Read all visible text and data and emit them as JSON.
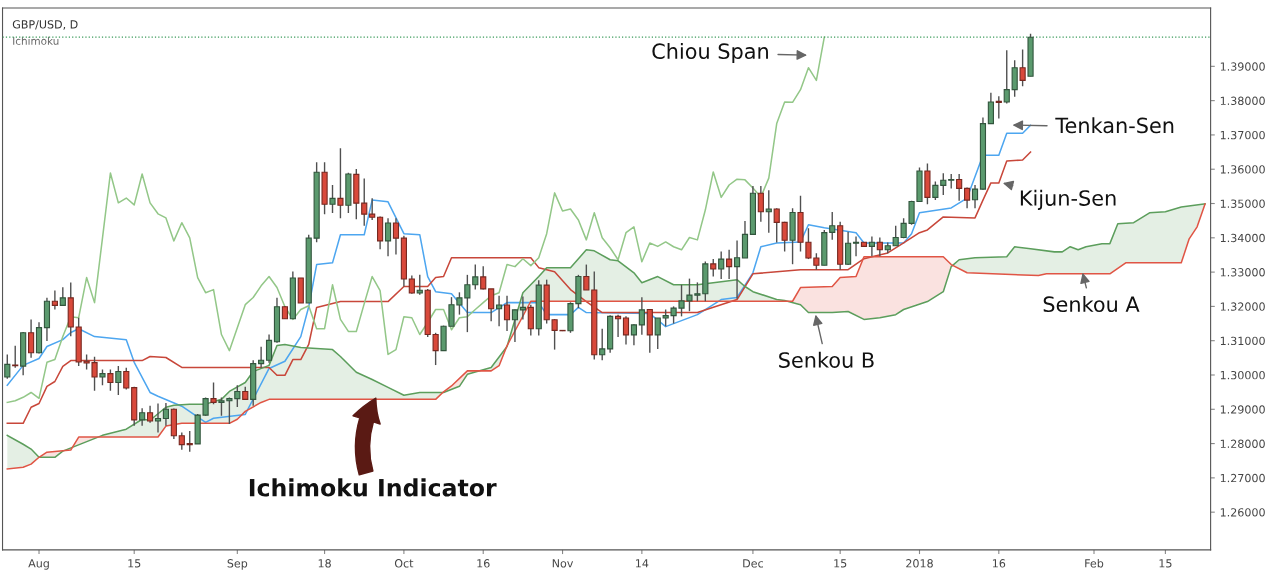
{
  "chart_data": {
    "type": "candlestick",
    "title": "GBP/USD, D",
    "subtitle": "Ichimoku",
    "categories": [
      null,
      null,
      null,
      null,
      "Aug",
      null,
      null,
      null,
      null,
      null,
      null,
      null,
      null,
      null,
      null,
      null,
      "15",
      null,
      null,
      null,
      null,
      null,
      null,
      null,
      null,
      null,
      null,
      null,
      null,
      "Sep",
      null,
      null,
      null,
      null,
      null,
      null,
      null,
      null,
      null,
      null,
      "18",
      null,
      null,
      null,
      null,
      null,
      null,
      null,
      null,
      null,
      "Oct",
      null,
      null,
      null,
      null,
      null,
      null,
      null,
      null,
      null,
      "16",
      null,
      null,
      null,
      null,
      null,
      null,
      null,
      null,
      null,
      "Nov",
      null,
      null,
      null,
      null,
      null,
      null,
      null,
      null,
      null,
      "14",
      null,
      null,
      null,
      null,
      null,
      null,
      null,
      null,
      null,
      null,
      null,
      null,
      null,
      "Dec",
      null,
      null,
      null,
      null,
      null,
      null,
      null,
      null,
      null,
      null,
      "15",
      null,
      null,
      null,
      null,
      null,
      null,
      null,
      null,
      null,
      "2018",
      null,
      null,
      null,
      null,
      null,
      null,
      null,
      null,
      null,
      "16",
      null,
      null,
      null,
      null,
      null,
      null,
      null,
      null,
      null,
      null,
      null,
      "Feb",
      null,
      null,
      null,
      null,
      null,
      null,
      null,
      null,
      "15",
      null,
      null,
      null,
      null,
      null
    ],
    "ohlc": [
      [
        1.2994,
        1.306,
        1.2989,
        1.3031
      ],
      [
        1.3029,
        1.3085,
        1.3021,
        1.3027
      ],
      [
        1.3026,
        1.3125,
        1.2999,
        1.3123
      ],
      [
        1.3123,
        1.3162,
        1.305,
        1.3065
      ],
      [
        1.3065,
        1.3154,
        1.3063,
        1.3138
      ],
      [
        1.3138,
        1.3225,
        1.3099,
        1.3215
      ],
      [
        1.3215,
        1.3246,
        1.3191,
        1.3203
      ],
      [
        1.3203,
        1.3256,
        1.3203,
        1.3225
      ],
      [
        1.3225,
        1.327,
        1.3113,
        1.314
      ],
      [
        1.314,
        1.3167,
        1.3026,
        1.3038
      ],
      [
        1.304,
        1.306,
        1.3016,
        1.3035
      ],
      [
        1.3036,
        1.3053,
        1.2954,
        1.2994
      ],
      [
        1.2994,
        1.3016,
        1.297,
        1.3004
      ],
      [
        1.3004,
        1.3016,
        1.2954,
        1.2978
      ],
      [
        1.2978,
        1.3026,
        1.2942,
        1.301
      ],
      [
        1.301,
        1.3021,
        1.2958,
        1.2962
      ],
      [
        1.2963,
        1.2966,
        1.2852,
        1.2869
      ],
      [
        1.2869,
        1.2903,
        1.2852,
        1.289
      ],
      [
        1.289,
        1.291,
        1.2861,
        1.2866
      ],
      [
        1.2866,
        1.2917,
        1.2832,
        1.2873
      ],
      [
        1.2873,
        1.2918,
        1.2852,
        1.29
      ],
      [
        1.29,
        1.2902,
        1.2813,
        1.2823
      ],
      [
        1.2823,
        1.2832,
        1.2782,
        1.2797
      ],
      [
        1.28,
        1.2837,
        1.2776,
        1.2797
      ],
      [
        1.2799,
        1.2886,
        1.2799,
        1.2883
      ],
      [
        1.2883,
        1.2934,
        1.2881,
        1.2931
      ],
      [
        1.2931,
        1.2978,
        1.2915,
        1.292
      ],
      [
        1.292,
        1.2934,
        1.2881,
        1.2925
      ],
      [
        1.2925,
        1.2934,
        1.2857,
        1.2931
      ],
      [
        1.2931,
        1.297,
        1.2907,
        1.2952
      ],
      [
        1.2952,
        1.2966,
        1.2927,
        1.2929
      ],
      [
        1.2929,
        1.3043,
        1.291,
        1.3033
      ],
      [
        1.3033,
        1.3082,
        1.3021,
        1.3043
      ],
      [
        1.3043,
        1.3118,
        1.3036,
        1.3101
      ],
      [
        1.3097,
        1.3225,
        1.3094,
        1.3199
      ],
      [
        1.3199,
        1.3201,
        1.3164,
        1.3164
      ],
      [
        1.3164,
        1.3302,
        1.3164,
        1.3283
      ],
      [
        1.3283,
        1.3283,
        1.321,
        1.321
      ],
      [
        1.321,
        1.3409,
        1.321,
        1.3399
      ],
      [
        1.3399,
        1.362,
        1.3387,
        1.3591
      ],
      [
        1.3591,
        1.362,
        1.3469,
        1.3498
      ],
      [
        1.3498,
        1.3554,
        1.3472,
        1.3515
      ],
      [
        1.3515,
        1.3661,
        1.3457,
        1.3495
      ],
      [
        1.3495,
        1.359,
        1.3472,
        1.3586
      ],
      [
        1.3585,
        1.3601,
        1.3454,
        1.3501
      ],
      [
        1.3501,
        1.3573,
        1.3435,
        1.3469
      ],
      [
        1.3469,
        1.3515,
        1.3452,
        1.346
      ],
      [
        1.346,
        1.3462,
        1.3367,
        1.3391
      ],
      [
        1.3391,
        1.3457,
        1.3346,
        1.3443
      ],
      [
        1.3443,
        1.3457,
        1.3351,
        1.3399
      ],
      [
        1.3399,
        1.3406,
        1.3258,
        1.328
      ],
      [
        1.328,
        1.329,
        1.3237,
        1.3239
      ],
      [
        1.3239,
        1.3292,
        1.3234,
        1.3247
      ],
      [
        1.3247,
        1.3251,
        1.3111,
        1.3118
      ],
      [
        1.3118,
        1.3123,
        1.3029,
        1.3071
      ],
      [
        1.3071,
        1.3144,
        1.3071,
        1.3142
      ],
      [
        1.3142,
        1.3227,
        1.3142,
        1.3205
      ],
      [
        1.3204,
        1.3241,
        1.3176,
        1.3225
      ],
      [
        1.3225,
        1.3292,
        1.3125,
        1.3263
      ],
      [
        1.3263,
        1.3322,
        1.3249,
        1.3286
      ],
      [
        1.3286,
        1.3317,
        1.3249,
        1.3251
      ],
      [
        1.3251,
        1.3251,
        1.3157,
        1.3193
      ],
      [
        1.3193,
        1.3231,
        1.3142,
        1.3204
      ],
      [
        1.3204,
        1.3231,
        1.3128,
        1.3161
      ],
      [
        1.3161,
        1.3191,
        1.3096,
        1.319
      ],
      [
        1.319,
        1.3229,
        1.3162,
        1.3197
      ],
      [
        1.3197,
        1.3205,
        1.3115,
        1.3135
      ],
      [
        1.3135,
        1.3276,
        1.3115,
        1.3262
      ],
      [
        1.3262,
        1.3278,
        1.315,
        1.3161
      ],
      [
        1.3161,
        1.3163,
        1.3074,
        1.313
      ],
      [
        1.313,
        1.3131,
        1.3128,
        1.3129
      ],
      [
        1.3129,
        1.3212,
        1.3123,
        1.3208
      ],
      [
        1.3208,
        1.3292,
        1.3195,
        1.3287
      ],
      [
        1.3287,
        1.3322,
        1.3248,
        1.3248
      ],
      [
        1.3248,
        1.3302,
        1.3045,
        1.3059
      ],
      [
        1.3059,
        1.3135,
        1.3043,
        1.3076
      ],
      [
        1.3076,
        1.3174,
        1.3065,
        1.3171
      ],
      [
        1.3171,
        1.3176,
        1.3111,
        1.3164
      ],
      [
        1.3166,
        1.3171,
        1.3089,
        1.3117
      ],
      [
        1.3117,
        1.3148,
        1.3087,
        1.3146
      ],
      [
        1.3146,
        1.3227,
        1.3117,
        1.319
      ],
      [
        1.3191,
        1.3192,
        1.3065,
        1.3117
      ],
      [
        1.3117,
        1.3166,
        1.3076,
        1.3166
      ],
      [
        1.3166,
        1.3191,
        1.3142,
        1.3173
      ],
      [
        1.3173,
        1.32,
        1.315,
        1.3195
      ],
      [
        1.3195,
        1.3263,
        1.3171,
        1.3216
      ],
      [
        1.3216,
        1.3281,
        1.3186,
        1.3233
      ],
      [
        1.3233,
        1.327,
        1.3215,
        1.3237
      ],
      [
        1.3237,
        1.3331,
        1.3215,
        1.3324
      ],
      [
        1.3324,
        1.3338,
        1.3287,
        1.3309
      ],
      [
        1.3309,
        1.336,
        1.328,
        1.3338
      ],
      [
        1.3338,
        1.3365,
        1.328,
        1.3316
      ],
      [
        1.3316,
        1.3392,
        1.3222,
        1.3342
      ],
      [
        1.3341,
        1.3449,
        1.3341,
        1.341
      ],
      [
        1.341,
        1.3551,
        1.341,
        1.353
      ],
      [
        1.353,
        1.3551,
        1.3447,
        1.3476
      ],
      [
        1.3476,
        1.3539,
        1.3415,
        1.3484
      ],
      [
        1.3484,
        1.3486,
        1.3386,
        1.3445
      ],
      [
        1.3445,
        1.3447,
        1.336,
        1.3393
      ],
      [
        1.3393,
        1.3486,
        1.3323,
        1.3474
      ],
      [
        1.3474,
        1.3523,
        1.336,
        1.3387
      ],
      [
        1.3387,
        1.3428,
        1.3338,
        1.3341
      ],
      [
        1.3341,
        1.3355,
        1.3307,
        1.332
      ],
      [
        1.332,
        1.3423,
        1.332,
        1.3415
      ],
      [
        1.3416,
        1.3475,
        1.3394,
        1.3435
      ],
      [
        1.3435,
        1.3447,
        1.3307,
        1.3323
      ],
      [
        1.3323,
        1.3418,
        1.3321,
        1.3384
      ],
      [
        1.3384,
        1.3404,
        1.3346,
        1.3387
      ],
      [
        1.3387,
        1.3387,
        1.3373,
        1.3375
      ],
      [
        1.3375,
        1.3404,
        1.3346,
        1.3387
      ],
      [
        1.3387,
        1.3401,
        1.3346,
        1.3365
      ],
      [
        1.3365,
        1.3386,
        1.3355,
        1.3377
      ],
      [
        1.3377,
        1.3435,
        1.3377,
        1.3401
      ],
      [
        1.3401,
        1.3457,
        1.3399,
        1.3442
      ],
      [
        1.3442,
        1.3508,
        1.3438,
        1.3506
      ],
      [
        1.3506,
        1.3605,
        1.3506,
        1.3595
      ],
      [
        1.3595,
        1.3617,
        1.3498,
        1.3518
      ],
      [
        1.3518,
        1.3564,
        1.351,
        1.3553
      ],
      [
        1.3553,
        1.3588,
        1.3525,
        1.3568
      ],
      [
        1.3568,
        1.3586,
        1.3544,
        1.357
      ],
      [
        1.357,
        1.3586,
        1.3508,
        1.3544
      ],
      [
        1.3544,
        1.3547,
        1.3486,
        1.351
      ],
      [
        1.3511,
        1.3554,
        1.3486,
        1.3542
      ],
      [
        1.3542,
        1.3751,
        1.354,
        1.3733
      ],
      [
        1.3733,
        1.3823,
        1.3732,
        1.3796
      ],
      [
        1.3798,
        1.3813,
        1.3748,
        1.3795
      ],
      [
        1.3796,
        1.3947,
        1.3792,
        1.3832
      ],
      [
        1.3832,
        1.3918,
        1.3811,
        1.3896
      ],
      [
        1.3896,
        1.3949,
        1.3842,
        1.3859
      ],
      [
        1.3871,
        1.3995,
        1.3871,
        1.3985
      ],
      null,
      null,
      null,
      null,
      null,
      null,
      null,
      null,
      null,
      null,
      null,
      null,
      null,
      null,
      null,
      null,
      null,
      null,
      null,
      null,
      null,
      null
    ],
    "colors": [
      "#5b9a6e",
      "#d9493b",
      "#5b9a6e",
      "#d9493b",
      "#5b9a6e",
      "#5b9a6e",
      "#d9493b",
      "#5b9a6e",
      "#d9493b",
      "#d9493b",
      "#d9493b",
      "#d9493b",
      "#5b9a6e",
      "#d9493b",
      "#5b9a6e",
      "#d9493b",
      "#d9493b",
      "#5b9a6e",
      "#d9493b",
      "#5b9a6e",
      "#5b9a6e",
      "#d9493b",
      "#d9493b",
      "#d9493b",
      "#5b9a6e",
      "#5b9a6e",
      "#d9493b",
      "#5b9a6e",
      "#5b9a6e",
      "#5b9a6e",
      "#d9493b",
      "#5b9a6e",
      "#5b9a6e",
      "#5b9a6e",
      "#5b9a6e",
      "#d9493b",
      "#5b9a6e",
      "#d9493b",
      "#5b9a6e",
      "#5b9a6e",
      "#d9493b",
      "#5b9a6e",
      "#d9493b",
      "#5b9a6e",
      "#d9493b",
      "#d9493b",
      "#d9493b",
      "#d9493b",
      "#5b9a6e",
      "#d9493b",
      "#d9493b",
      "#d9493b",
      "#5b9a6e",
      "#d9493b",
      "#d9493b",
      "#5b9a6e",
      "#5b9a6e",
      "#5b9a6e",
      "#5b9a6e",
      "#5b9a6e",
      "#d9493b",
      "#d9493b",
      "#5b9a6e",
      "#d9493b",
      "#5b9a6e",
      "#5b9a6e",
      "#d9493b",
      "#5b9a6e",
      "#d9493b",
      "#d9493b",
      "#d9493b",
      "#5b9a6e",
      "#5b9a6e",
      "#d9493b",
      "#d9493b",
      "#5b9a6e",
      "#5b9a6e",
      "#d9493b",
      "#d9493b",
      "#5b9a6e",
      "#5b9a6e",
      "#d9493b",
      "#5b9a6e",
      "#5b9a6e",
      "#5b9a6e",
      "#5b9a6e",
      "#5b9a6e",
      "#5b9a6e",
      "#5b9a6e",
      "#d9493b",
      "#5b9a6e",
      "#d9493b",
      "#5b9a6e",
      "#5b9a6e",
      "#5b9a6e",
      "#d9493b",
      "#5b9a6e",
      "#d9493b",
      "#d9493b",
      "#5b9a6e",
      "#d9493b",
      "#d9493b",
      "#d9493b",
      "#5b9a6e",
      "#5b9a6e",
      "#d9493b",
      "#5b9a6e",
      "#5b9a6e",
      "#d9493b",
      "#5b9a6e",
      "#d9493b",
      "#5b9a6e",
      "#5b9a6e",
      "#5b9a6e",
      "#5b9a6e",
      "#5b9a6e",
      "#d9493b",
      "#5b9a6e",
      "#5b9a6e",
      "#5b9a6e",
      "#d9493b",
      "#d9493b",
      "#5b9a6e",
      "#5b9a6e",
      "#5b9a6e",
      "#d9493b",
      "#5b9a6e",
      "#5b9a6e",
      "#d9493b",
      "#5b9a6e",
      null,
      null,
      null,
      null,
      null,
      null,
      null,
      null,
      null,
      null,
      null,
      null,
      null,
      null,
      null,
      null,
      null,
      null,
      null,
      null,
      null,
      null
    ],
    "series": [
      {
        "type": "line",
        "color": "#4da6f0",
        "values": [
          1.297,
          null,
          1.3028,
          null,
          1.3048,
          1.3083,
          null,
          1.3103,
          1.3124,
          1.3135,
          null,
          1.3112,
          null,
          null,
          null,
          1.3103,
          1.3037,
          null,
          1.2949,
          1.2938,
          null,
          null,
          1.2909,
          null,
          null,
          1.2862,
          1.2874,
          null,
          null,
          null,
          1.2885,
          null,
          null,
          1.3019,
          null,
          1.304,
          null,
          1.3112,
          1.3199,
          1.3322,
          null,
          1.3327,
          1.3409,
          null,
          null,
          1.3409,
          1.351,
          null,
          1.3505,
          null,
          1.3412,
          null,
          1.3409,
          1.3287,
          1.3243,
          null,
          1.3237,
          null,
          1.3182,
          null,
          null,
          1.3182,
          null,
          1.3211,
          null,
          null,
          null,
          1.3211,
          1.3176,
          null,
          null,
          1.3176,
          1.3197,
          1.3182,
          null,
          null,
          null,
          null,
          null,
          null,
          null,
          1.3179,
          null,
          1.3141,
          null,
          null,
          null,
          1.3176,
          null,
          null,
          1.322,
          null,
          1.3226,
          null,
          1.3298,
          1.3374,
          null,
          1.3385,
          null,
          null,
          1.3388,
          1.3438,
          null,
          1.3429,
          null,
          null,
          null,
          1.3415,
          1.3385,
          null,
          null,
          null,
          null,
          1.3385,
          1.3412,
          1.3473,
          null,
          null,
          null,
          1.3487,
          null,
          1.3516,
          null,
          1.3641,
          null,
          1.3641,
          1.3705,
          null,
          1.3705,
          1.3728,
          null,
          null,
          null,
          null,
          null,
          null,
          null,
          null,
          null,
          null,
          null,
          null,
          null,
          null,
          null,
          null,
          null,
          null,
          null,
          null,
          null,
          null
        ]
      },
      {
        "type": "line",
        "color": "#c8473a",
        "values": [
          1.2859,
          null,
          1.2859,
          1.2906,
          1.2917,
          1.2967,
          1.2981,
          1.3025,
          1.3042,
          null,
          null,
          null,
          null,
          null,
          null,
          null,
          null,
          1.3042,
          1.3054,
          null,
          1.3051,
          null,
          1.3022,
          null,
          null,
          null,
          null,
          null,
          null,
          null,
          null,
          null,
          null,
          1.3022,
          1.2999,
          1.2999,
          1.3045,
          1.3045,
          1.3089,
          1.3197,
          null,
          null,
          1.3214,
          null,
          null,
          null,
          null,
          null,
          1.3214,
          null,
          1.3258,
          null,
          null,
          1.3258,
          1.3284,
          1.3287,
          1.3342,
          null,
          null,
          null,
          null,
          null,
          null,
          null,
          null,
          null,
          1.3342,
          1.3313,
          null,
          1.3301,
          null,
          1.3249,
          null,
          1.3214,
          null,
          1.3182,
          null,
          null,
          null,
          null,
          null,
          null,
          null,
          null,
          null,
          null,
          null,
          1.3182,
          null,
          null,
          null,
          null,
          1.322,
          null,
          1.3295,
          null,
          null,
          null,
          null,
          null,
          1.3307,
          null,
          null,
          null,
          null,
          null,
          1.3307,
          null,
          1.3339,
          null,
          null,
          1.3356,
          null,
          1.3385,
          null,
          1.3415,
          1.3423,
          null,
          1.3461,
          null,
          null,
          null,
          1.3458,
          1.351,
          1.356,
          1.356,
          1.3624,
          null,
          1.3627,
          1.365,
          null,
          null,
          null,
          null,
          null,
          null,
          null,
          null,
          null,
          null,
          null,
          null,
          null,
          null,
          null,
          null,
          null,
          null,
          null,
          null,
          null,
          null
        ]
      },
      {
        "type": "line",
        "color": "#93c788",
        "values": [
          1.292,
          1.2925,
          1.2935,
          1.2949,
          1.2932,
          1.3037,
          1.3045,
          1.3112,
          1.317,
          1.3167,
          1.3284,
          1.3211,
          1.3399,
          1.3589,
          1.3502,
          1.3516,
          1.3496,
          1.3586,
          1.3502,
          1.347,
          1.3458,
          1.3391,
          1.3444,
          1.34,
          1.3284,
          1.324,
          1.3249,
          1.3118,
          1.3071,
          1.3138,
          1.3205,
          1.3226,
          1.326,
          1.3287,
          1.3255,
          1.3199,
          1.3162,
          1.3191,
          1.3202,
          1.3135,
          1.3135,
          1.3263,
          1.3162,
          1.3127,
          1.3127,
          1.3208,
          1.3287,
          1.3246,
          1.306,
          1.3074,
          1.317,
          1.3167,
          1.3118,
          1.3153,
          1.3191,
          1.3191,
          1.3132,
          1.3167,
          1.317,
          1.3191,
          1.3211,
          1.3231,
          1.324,
          1.3322,
          1.3316,
          1.3339,
          1.3319,
          1.3342,
          1.3412,
          1.3531,
          1.3478,
          1.3484,
          1.3452,
          1.3394,
          1.3473,
          1.34,
          1.3371,
          1.3336,
          1.3415,
          1.3432,
          1.333,
          1.3385,
          1.3375,
          1.3388,
          1.3374,
          1.3365,
          1.3401,
          1.3394,
          1.3481,
          1.3592,
          1.3518,
          1.3554,
          1.3571,
          1.3569,
          1.3545,
          1.3519,
          1.3574,
          1.3733,
          1.3796,
          1.3795,
          1.3832,
          1.3896,
          1.3859,
          1.3985,
          null,
          null,
          null,
          null,
          null,
          null,
          null,
          null,
          null,
          null,
          null,
          null,
          null,
          null,
          null,
          null,
          null,
          null,
          null,
          null,
          null,
          null,
          null,
          null,
          null,
          null,
          null,
          null,
          null,
          null,
          null,
          null,
          null,
          null,
          null,
          null,
          null,
          null,
          null,
          null,
          null,
          null,
          null,
          null,
          null,
          null,
          null,
          null
        ]
      },
      {
        "type": "line",
        "color": "#5c9e5c",
        "values": [
          1.2824,
          null,
          1.2798,
          1.2784,
          1.276,
          null,
          1.276,
          1.2778,
          null,
          null,
          null,
          null,
          1.2824,
          null,
          null,
          1.2842,
          null,
          1.2871,
          1.2868,
          null,
          1.2906,
          1.2912,
          null,
          1.2915,
          null,
          1.2915,
          null,
          1.2929,
          1.2952,
          null,
          1.2978,
          1.301,
          null,
          1.3028,
          1.3086,
          1.3089,
          null,
          1.308,
          null,
          1.3077,
          null,
          1.3074,
          1.3054,
          null,
          1.3008,
          null,
          1.2987,
          null,
          1.2964,
          null,
          1.2941,
          null,
          1.2949,
          null,
          null,
          1.2949,
          null,
          1.2967,
          1.3002,
          null,
          null,
          1.3022,
          null,
          1.3083,
          null,
          1.324,
          null,
          1.3287,
          1.3313,
          null,
          null,
          1.3313,
          null,
          1.3365,
          1.3362,
          null,
          1.3336,
          1.3333,
          null,
          1.3298,
          1.3269,
          null,
          1.3287,
          null,
          1.3263,
          null,
          null,
          1.3263,
          null,
          null,
          null,
          null,
          1.3278,
          1.3258,
          1.3243,
          null,
          null,
          1.322,
          1.3217,
          null,
          1.3205,
          1.3182,
          null,
          null,
          1.3182,
          null,
          1.3185,
          null,
          1.3162,
          null,
          1.3167,
          null,
          1.3176,
          1.3191,
          null,
          null,
          1.3214,
          null,
          1.3243,
          1.3316,
          1.3336,
          null,
          1.3342,
          null,
          null,
          null,
          1.3345,
          1.3374,
          null,
          1.3368,
          null,
          null,
          1.3359,
          1.3359,
          1.3374,
          1.3365,
          1.3374,
          null,
          1.3383,
          1.3383,
          1.3441,
          null,
          1.3444,
          null,
          1.3473,
          null,
          1.3476,
          null,
          1.349,
          null,
          null,
          1.3499
        ]
      },
      {
        "type": "line",
        "color": "#e05545",
        "values": [
          1.2726,
          null,
          1.2731,
          1.274,
          1.276,
          1.2775,
          null,
          null,
          1.2781,
          1.2819,
          null,
          null,
          null,
          null,
          null,
          null,
          null,
          null,
          null,
          1.2819,
          1.2851,
          null,
          1.2859,
          null,
          null,
          null,
          null,
          null,
          1.2859,
          1.2871,
          1.2894,
          null,
          1.292,
          1.2929,
          null,
          null,
          null,
          null,
          null,
          null,
          null,
          null,
          null,
          null,
          null,
          null,
          null,
          null,
          null,
          null,
          null,
          null,
          null,
          null,
          1.2929,
          1.2951,
          1.2968,
          null,
          1.3012,
          null,
          null,
          1.3012,
          1.3027,
          1.3085,
          null,
          null,
          1.3215,
          null,
          null,
          null,
          null,
          null,
          null,
          null,
          null,
          null,
          null,
          null,
          null,
          null,
          null,
          null,
          null,
          null,
          null,
          null,
          null,
          null,
          null,
          null,
          null,
          null,
          null,
          null,
          null,
          null,
          null,
          null,
          null,
          1.3215,
          1.3255,
          null,
          null,
          null,
          1.3258,
          1.3284,
          null,
          1.3287,
          1.3345,
          null,
          null,
          null,
          null,
          null,
          null,
          null,
          null,
          null,
          1.3345,
          1.3322,
          null,
          1.3298,
          null,
          null,
          null,
          null,
          null,
          null,
          null,
          null,
          1.329,
          1.3295,
          null,
          null,
          null,
          null,
          null,
          null,
          null,
          1.3295,
          null,
          1.3327,
          null,
          null,
          null,
          null,
          null,
          null,
          1.3327,
          1.3397,
          1.3432,
          1.3499
        ]
      }
    ],
    "ylim": [
      1.249,
      1.407
    ],
    "yticks": [
      {
        "value": 1.26,
        "label": "1.26000"
      },
      {
        "value": 1.27,
        "label": "1.27000"
      },
      {
        "value": 1.28,
        "label": "1.28000"
      },
      {
        "value": 1.29,
        "label": "1.29000"
      },
      {
        "value": 1.3,
        "label": "1.30000"
      },
      {
        "value": 1.31,
        "label": "1.31000"
      },
      {
        "value": 1.32,
        "label": "1.32000"
      },
      {
        "value": 1.33,
        "label": "1.33000"
      },
      {
        "value": 1.34,
        "label": "1.34000"
      },
      {
        "value": 1.35,
        "label": "1.35000"
      },
      {
        "value": 1.36,
        "label": "1.36000"
      },
      {
        "value": 1.37,
        "label": "1.37000"
      },
      {
        "value": 1.38,
        "label": "1.38000"
      },
      {
        "value": 1.39,
        "label": "1.39000"
      }
    ],
    "ref_lines": [
      {
        "axis": "y",
        "value": 1.3985,
        "color": "#3a9a5a",
        "line_style": "dotted"
      }
    ],
    "annotations": [
      "Chiou Span",
      "Tenkan-Sen",
      "Kijun-Sen",
      {
        "text": "Senkou A",
        "y": 1.3298
      },
      {
        "text": "Senkou B",
        "y": 1.3176
      },
      "Ichimoku Indicator"
    ],
    "grid": false,
    "legend": false
  }
}
